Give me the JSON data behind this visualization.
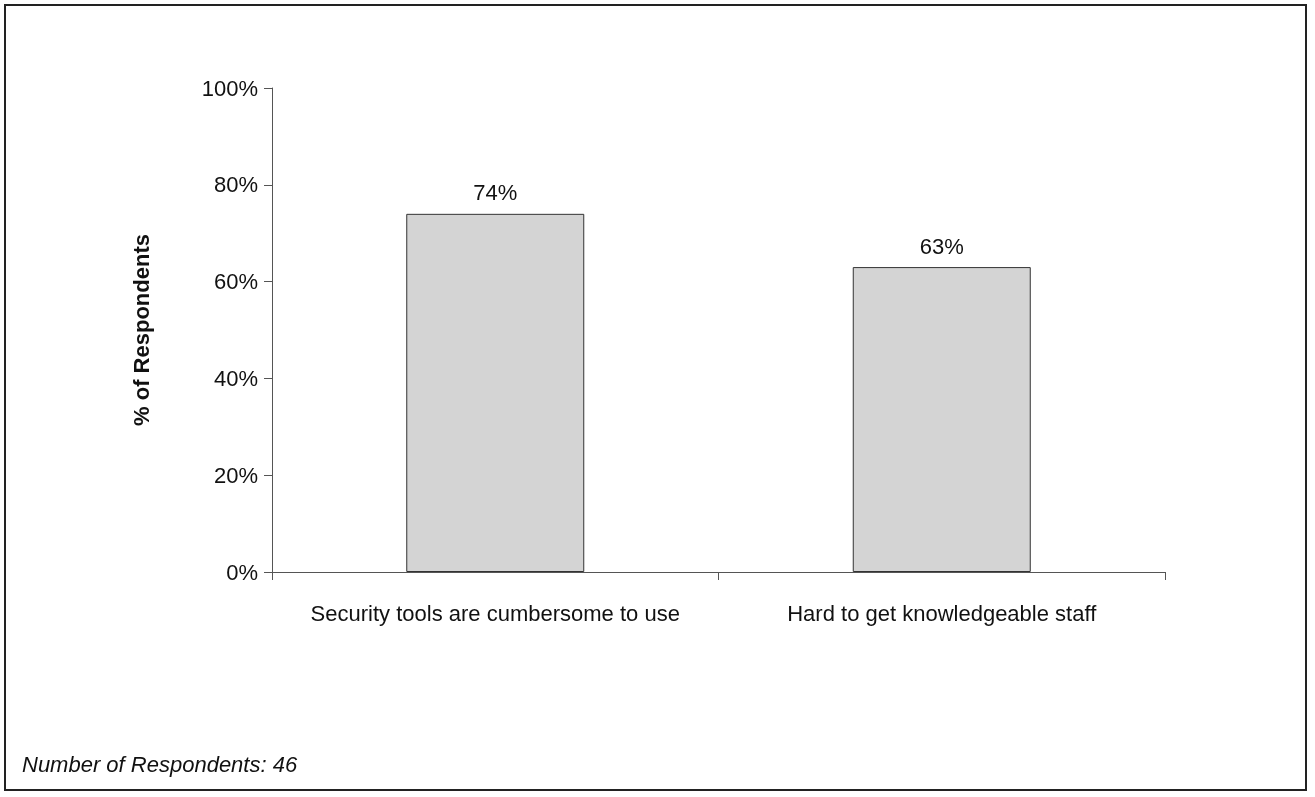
{
  "chart_data": {
    "type": "bar",
    "ylabel": "% of Respondents",
    "categories": [
      "Security tools are cumbersome to use",
      "Hard to get knowledgeable staff"
    ],
    "values": [
      74,
      63
    ],
    "value_labels": [
      "74%",
      "63%"
    ],
    "color": "#d4d4d4",
    "ylim": [
      0,
      100
    ],
    "yticks": [
      {
        "value": 0,
        "label": "0%"
      },
      {
        "value": 20,
        "label": "20%"
      },
      {
        "value": 40,
        "label": "40%"
      },
      {
        "value": 60,
        "label": "60%"
      },
      {
        "value": 80,
        "label": "80%"
      },
      {
        "value": 100,
        "label": "100%"
      }
    ],
    "grid": false,
    "annotations": [
      "Number of Respondents: 46"
    ]
  }
}
